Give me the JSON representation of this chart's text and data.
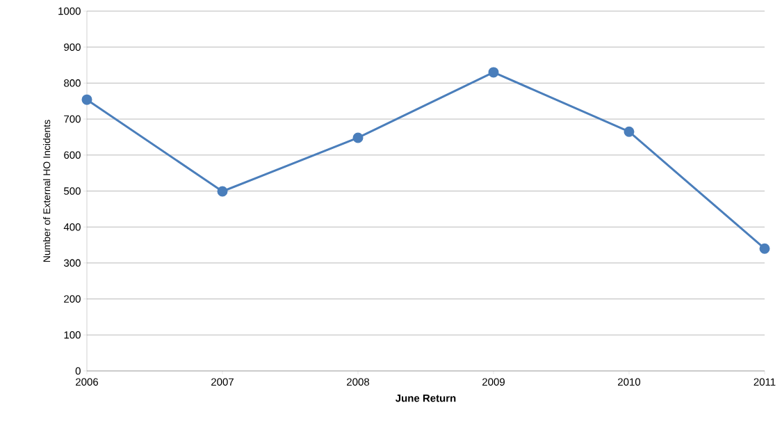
{
  "chart_data": {
    "type": "line",
    "xlabel": "June Return",
    "ylabel": "Number of External HO Incidents",
    "categories": [
      "2006",
      "2007",
      "2008",
      "2009",
      "2010",
      "2011"
    ],
    "series": [
      {
        "color": "#4a7ebb",
        "values": [
          754,
          499,
          648,
          830,
          665,
          340
        ]
      }
    ],
    "ylim": [
      0,
      1000
    ],
    "yticks": [
      0,
      100,
      200,
      300,
      400,
      500,
      600,
      700,
      800,
      900,
      1000
    ],
    "grid": "y",
    "marker": "circle"
  }
}
